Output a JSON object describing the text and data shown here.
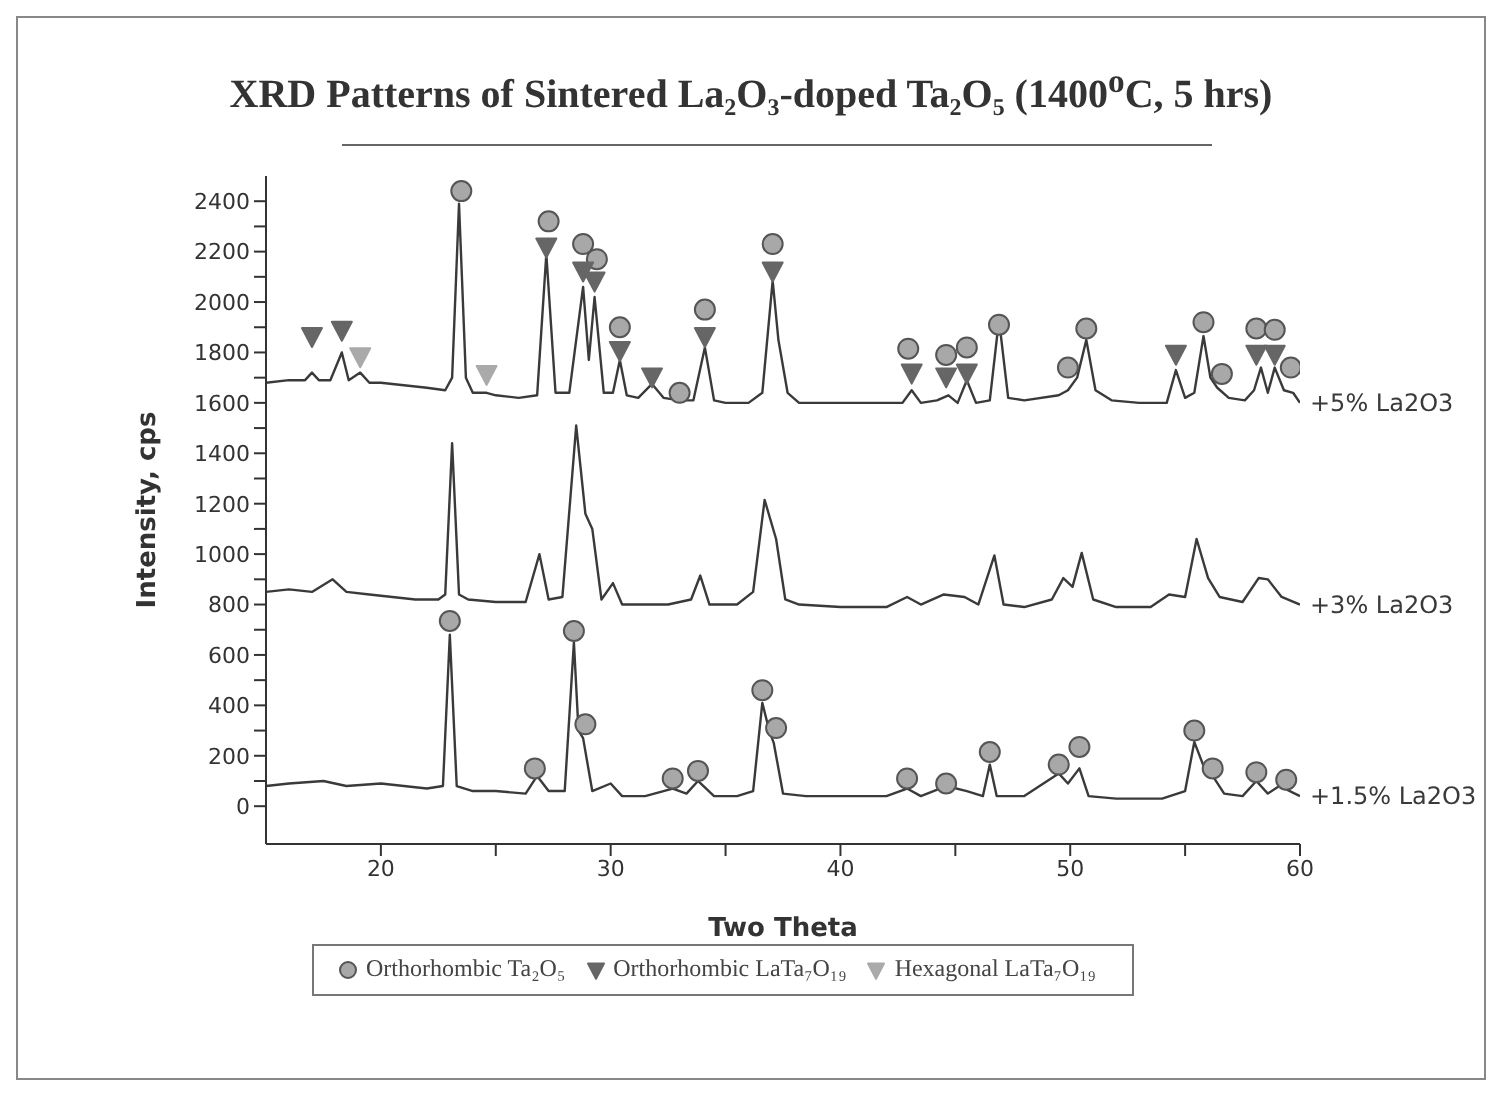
{
  "chart_data": {
    "type": "line",
    "title": "XRD Patterns of Sintered La₂O₃-doped Ta₂O₅ (1400$^{o}$C, 5 hrs)",
    "xlabel": "Two Theta",
    "ylabel": "Intensity, cps",
    "xlim": [
      15,
      60
    ],
    "ylim": [
      -150,
      2500
    ],
    "xticks": [
      20,
      {
        "value": 25,
        "label": null
      },
      30,
      {
        "value": 35,
        "label": null
      },
      40,
      {
        "value": 45,
        "label": null
      },
      50,
      {
        "value": 55,
        "label": null
      },
      60
    ],
    "yticks": [
      0,
      {
        "value": 100,
        "label": null
      },
      200,
      {
        "value": 300,
        "label": null
      },
      400,
      {
        "value": 500,
        "label": null
      },
      600,
      {
        "value": 700,
        "label": null
      },
      800,
      {
        "value": 900,
        "label": null
      },
      1000,
      {
        "value": 1100,
        "label": null
      },
      1200,
      {
        "value": 1300,
        "label": null
      },
      1400,
      {
        "value": 1500,
        "label": null
      },
      1600,
      {
        "value": 1700,
        "label": null
      },
      1800,
      {
        "value": 1900,
        "label": null
      },
      2000,
      {
        "value": 2100,
        "label": null
      },
      2200,
      {
        "value": 2300,
        "label": null
      },
      2400
    ],
    "legend": "bottom",
    "series": [
      {
        "name": "+5% La2O3",
        "color": "#3a3a3a",
        "x": [
          15,
          16,
          16.7,
          17.0,
          17.3,
          17.8,
          18.3,
          18.6,
          19.1,
          19.5,
          20,
          21,
          22,
          22.8,
          23.1,
          23.4,
          23.7,
          24,
          24.6,
          25,
          26,
          26.8,
          27.2,
          27.6,
          28.2,
          28.8,
          29.05,
          29.3,
          29.7,
          30.1,
          30.4,
          30.7,
          31.2,
          31.8,
          32.3,
          33,
          33.6,
          34.1,
          34.5,
          35,
          36,
          36.6,
          37.05,
          37.3,
          37.7,
          38.2,
          40,
          42,
          42.7,
          43.1,
          43.5,
          44.2,
          44.7,
          45.1,
          45.5,
          45.9,
          46.5,
          46.9,
          47.3,
          48,
          49.5,
          49.9,
          50.3,
          50.7,
          51.1,
          51.8,
          53,
          54.2,
          54.6,
          55,
          55.4,
          55.8,
          56.1,
          56.4,
          56.9,
          57.6,
          58,
          58.3,
          58.6,
          58.9,
          59.3,
          59.7,
          60
        ],
        "values": [
          1680,
          1690,
          1690,
          1720,
          1690,
          1690,
          1800,
          1690,
          1720,
          1680,
          1680,
          1670,
          1660,
          1650,
          1700,
          2390,
          1700,
          1640,
          1640,
          1630,
          1620,
          1630,
          2190,
          1640,
          1640,
          2060,
          1770,
          2020,
          1640,
          1640,
          1770,
          1630,
          1620,
          1675,
          1620,
          1610,
          1610,
          1820,
          1610,
          1600,
          1600,
          1640,
          2085,
          1850,
          1640,
          1600,
          1600,
          1600,
          1600,
          1650,
          1600,
          1610,
          1630,
          1600,
          1690,
          1600,
          1610,
          1930,
          1620,
          1610,
          1630,
          1650,
          1700,
          1850,
          1650,
          1610,
          1600,
          1600,
          1730,
          1620,
          1640,
          1865,
          1700,
          1660,
          1620,
          1610,
          1650,
          1740,
          1640,
          1740,
          1650,
          1640,
          1600
        ]
      },
      {
        "name": "+3% La2O3",
        "color": "#3a3a3a",
        "x": [
          15,
          16,
          17,
          17.9,
          18.5,
          19.5,
          20.5,
          21.5,
          22.5,
          22.8,
          23.1,
          23.4,
          23.8,
          25,
          26.3,
          26.9,
          27.3,
          27.9,
          28.5,
          28.9,
          29.2,
          29.6,
          30.1,
          30.5,
          31.5,
          32.5,
          33.5,
          33.9,
          34.3,
          35.5,
          36.2,
          36.7,
          37.2,
          37.6,
          38.2,
          40,
          42,
          42.9,
          43.5,
          44.5,
          45.4,
          46,
          46.7,
          47.1,
          48,
          49.2,
          49.7,
          50.1,
          50.5,
          51,
          52,
          53.5,
          54.3,
          55,
          55.5,
          56,
          56.5,
          57.5,
          58.2,
          58.6,
          59.2,
          60
        ],
        "values": [
          850,
          860,
          850,
          900,
          850,
          840,
          830,
          820,
          820,
          840,
          1440,
          840,
          820,
          810,
          810,
          1000,
          820,
          830,
          1510,
          1160,
          1100,
          820,
          885,
          800,
          800,
          800,
          820,
          915,
          800,
          800,
          850,
          1215,
          1060,
          820,
          800,
          790,
          790,
          830,
          800,
          840,
          830,
          800,
          995,
          800,
          790,
          820,
          905,
          870,
          1005,
          820,
          790,
          790,
          840,
          830,
          1060,
          905,
          830,
          810,
          905,
          900,
          830,
          800
        ]
      },
      {
        "name": "+1.5% La2O3",
        "color": "#3a3a3a",
        "x": [
          15,
          16,
          17.5,
          18.5,
          20,
          21,
          22,
          22.7,
          23.0,
          23.3,
          24,
          25,
          26.3,
          26.8,
          27.3,
          28.0,
          28.4,
          28.6,
          28.8,
          29.2,
          30,
          30.5,
          31.5,
          32.7,
          33.3,
          33.8,
          34.5,
          35.5,
          36.2,
          36.6,
          36.9,
          37.1,
          37.5,
          38.5,
          40,
          42,
          42.9,
          43.5,
          44.6,
          45.5,
          46.2,
          46.5,
          46.8,
          48,
          49.5,
          49.9,
          50.4,
          50.8,
          52,
          54,
          55,
          55.4,
          55.8,
          56.2,
          56.7,
          57.5,
          58.1,
          58.6,
          59.1,
          60
        ],
        "values": [
          80,
          90,
          100,
          80,
          90,
          80,
          70,
          80,
          680,
          80,
          60,
          60,
          50,
          120,
          60,
          60,
          650,
          300,
          270,
          60,
          90,
          40,
          40,
          70,
          50,
          100,
          40,
          40,
          60,
          410,
          300,
          250,
          50,
          40,
          40,
          40,
          70,
          40,
          80,
          60,
          40,
          165,
          40,
          40,
          130,
          90,
          150,
          40,
          30,
          30,
          60,
          255,
          160,
          120,
          50,
          40,
          100,
          50,
          80,
          40
        ]
      },
      {
        "name": "Orthorhombic Ta₂O₅",
        "type": "scatter",
        "marker": "circle",
        "color": "#a8a8a8",
        "x": [
          23.5,
          27.3,
          28.8,
          29.4,
          30.4,
          33.0,
          34.1,
          37.05,
          42.95,
          44.6,
          45.5,
          46.9,
          49.9,
          50.7,
          55.8,
          56.6,
          58.1,
          58.9,
          59.6,
          23.0,
          28.4,
          28.9,
          26.7,
          32.7,
          33.8,
          36.6,
          37.2,
          42.9,
          44.6,
          46.5,
          49.5,
          50.4,
          55.4,
          56.2,
          58.1,
          59.4
        ],
        "values": [
          2440,
          2320,
          2230,
          2170,
          1900,
          1640,
          1970,
          2230,
          1815,
          1790,
          1820,
          1910,
          1740,
          1895,
          1920,
          1715,
          1895,
          1890,
          1740,
          735,
          695,
          325,
          150,
          110,
          140,
          460,
          310,
          110,
          90,
          215,
          165,
          235,
          300,
          150,
          135,
          105
        ]
      },
      {
        "name": "Orthorhombic LaTa₇O₁₉",
        "type": "scatter",
        "marker": "triangle",
        "color": "#666666",
        "x": [
          17.0,
          18.3,
          27.2,
          28.8,
          29.3,
          30.4,
          31.8,
          34.1,
          37.05,
          43.1,
          44.6,
          45.5,
          54.6,
          58.1,
          58.9
        ],
        "values": [
          1865,
          1890,
          2220,
          2125,
          2085,
          1810,
          1705,
          1865,
          2125,
          1720,
          1705,
          1720,
          1795,
          1795,
          1795
        ]
      },
      {
        "name": "Hexagonal LaTa₇O₁₉",
        "type": "scatter",
        "marker": "triangle",
        "color": "#aaaaaa",
        "x": [
          19.1,
          24.6
        ],
        "values": [
          1785,
          1715
        ]
      }
    ]
  }
}
